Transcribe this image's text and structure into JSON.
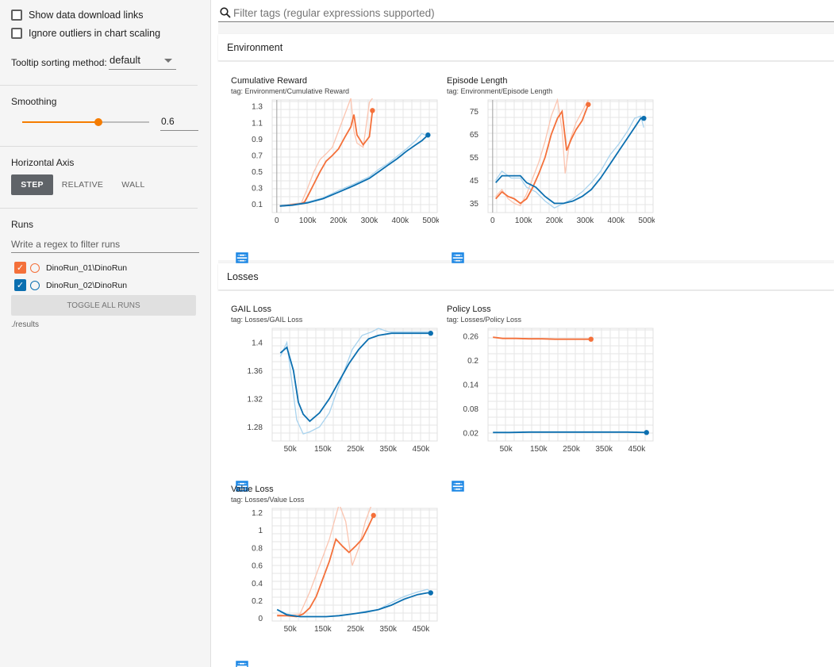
{
  "sidebar": {
    "show_download_links": "Show data download links",
    "ignore_outliers": "Ignore outliers in chart scaling",
    "tooltip_label": "Tooltip sorting method:",
    "tooltip_value": "default",
    "smoothing_label": "Smoothing",
    "smoothing_value": "0.6",
    "smoothing_fraction": 0.6,
    "horizontal_axis_label": "Horizontal Axis",
    "axis_buttons": {
      "step": "STEP",
      "relative": "RELATIVE",
      "wall": "WALL"
    },
    "runs_label": "Runs",
    "runs_filter_placeholder": "Write a regex to filter runs",
    "runs": [
      {
        "name": "DinoRun_01\\DinoRun",
        "color": "#f4703a"
      },
      {
        "name": "DinoRun_02\\DinoRun",
        "color": "#0b6fb0"
      }
    ],
    "toggle_all": "TOGGLE ALL RUNS",
    "logdir": "./results"
  },
  "filter": {
    "placeholder": "Filter tags (regular expressions supported)"
  },
  "sections": [
    {
      "title": "Environment"
    },
    {
      "title": "Losses"
    }
  ],
  "colors": {
    "run1": "#f4703a",
    "run1_raw": "#fbc5b1",
    "run2": "#0b6fb0",
    "run2_raw": "#a9d3ee"
  },
  "charts": [
    {
      "title": "Cumulative Reward",
      "tag": "tag: Environment/Cumulative Reward",
      "chart_data": {
        "type": "line",
        "xticks": [
          "0",
          "100k",
          "200k",
          "300k",
          "400k",
          "500k"
        ],
        "xtick_values": [
          0,
          100000,
          200000,
          300000,
          400000,
          500000
        ],
        "yticks": [
          "0.1",
          "0.3",
          "0.5",
          "0.7",
          "0.9",
          "1.1",
          "1.3"
        ],
        "ytick_values": [
          0.1,
          0.3,
          0.5,
          0.7,
          0.9,
          1.1,
          1.3
        ],
        "xlim": [
          -15000,
          520000
        ],
        "ylim": [
          0.0,
          1.38
        ],
        "series": [
          {
            "run": 0,
            "smoothed": true,
            "x": [
              10000,
              40000,
              60000,
              80000,
              90000,
              100000,
              120000,
              140000,
              160000,
              180000,
              200000,
              220000,
              240000,
              250000,
              260000,
              280000,
              300000,
              310000
            ],
            "y": [
              0.08,
              0.09,
              0.1,
              0.11,
              0.13,
              0.2,
              0.35,
              0.5,
              0.63,
              0.7,
              0.78,
              0.92,
              1.05,
              1.2,
              0.95,
              0.83,
              0.93,
              1.25
            ]
          },
          {
            "run": 0,
            "smoothed": false,
            "x": [
              10000,
              40000,
              80000,
              100000,
              120000,
              140000,
              160000,
              180000,
              200000,
              220000,
              240000,
              250000,
              260000,
              280000,
              300000,
              310000
            ],
            "y": [
              0.08,
              0.1,
              0.12,
              0.3,
              0.5,
              0.65,
              0.72,
              0.8,
              1.0,
              1.2,
              1.4,
              1.0,
              0.85,
              0.8,
              1.35,
              1.4
            ]
          },
          {
            "run": 1,
            "smoothed": true,
            "x": [
              10000,
              50000,
              100000,
              150000,
              200000,
              250000,
              300000,
              330000,
              360000,
              390000,
              420000,
              450000,
              470000,
              490000
            ],
            "y": [
              0.08,
              0.09,
              0.12,
              0.17,
              0.25,
              0.33,
              0.42,
              0.5,
              0.58,
              0.66,
              0.75,
              0.83,
              0.88,
              0.95
            ]
          },
          {
            "run": 1,
            "smoothed": false,
            "x": [
              10000,
              50000,
              100000,
              150000,
              200000,
              250000,
              300000,
              330000,
              360000,
              390000,
              420000,
              450000,
              470000,
              490000
            ],
            "y": [
              0.09,
              0.1,
              0.13,
              0.18,
              0.27,
              0.35,
              0.44,
              0.53,
              0.6,
              0.69,
              0.78,
              0.88,
              0.97,
              0.93
            ]
          }
        ]
      }
    },
    {
      "title": "Episode Length",
      "tag": "tag: Environment/Episode Length",
      "chart_data": {
        "type": "line",
        "xticks": [
          "0",
          "100k",
          "200k",
          "300k",
          "400k",
          "500k"
        ],
        "xtick_values": [
          0,
          100000,
          200000,
          300000,
          400000,
          500000
        ],
        "yticks": [
          "35",
          "45",
          "55",
          "65",
          "75"
        ],
        "ytick_values": [
          35,
          45,
          55,
          65,
          75
        ],
        "xlim": [
          -15000,
          520000
        ],
        "ylim": [
          31,
          80
        ],
        "series": [
          {
            "run": 0,
            "smoothed": true,
            "x": [
              10000,
              30000,
              50000,
              70000,
              90000,
              110000,
              130000,
              150000,
              170000,
              190000,
              210000,
              225000,
              240000,
              255000,
              270000,
              290000,
              310000
            ],
            "y": [
              37,
              40,
              38,
              37,
              35,
              37,
              42,
              48,
              55,
              65,
              72,
              75,
              58,
              63,
              67,
              71,
              78
            ]
          },
          {
            "run": 0,
            "smoothed": false,
            "x": [
              10000,
              30000,
              50000,
              70000,
              90000,
              110000,
              130000,
              150000,
              170000,
              190000,
              210000,
              225000,
              235000,
              250000,
              270000,
              290000,
              310000
            ],
            "y": [
              38,
              41,
              37,
              35,
              34,
              39,
              46,
              53,
              62,
              73,
              80,
              67,
              48,
              62,
              70,
              75,
              80
            ]
          },
          {
            "run": 1,
            "smoothed": true,
            "x": [
              10000,
              30000,
              60000,
              90000,
              110000,
              140000,
              170000,
              200000,
              230000,
              260000,
              290000,
              320000,
              350000,
              380000,
              410000,
              440000,
              460000,
              480000,
              490000
            ],
            "y": [
              44,
              47,
              47,
              47,
              44,
              42,
              38,
              35,
              35,
              36,
              38,
              41,
              46,
              52,
              58,
              64,
              68,
              72,
              72
            ]
          },
          {
            "run": 1,
            "smoothed": false,
            "x": [
              10000,
              30000,
              60000,
              90000,
              110000,
              140000,
              170000,
              200000,
              230000,
              260000,
              290000,
              320000,
              350000,
              380000,
              410000,
              440000,
              460000,
              480000,
              490000
            ],
            "y": [
              45,
              49,
              46,
              46,
              42,
              40,
              36,
              33,
              35,
              37,
              40,
              44,
              49,
              56,
              61,
              67,
              72,
              73,
              68
            ]
          }
        ]
      }
    },
    {
      "title": "GAIL Loss",
      "tag": "tag: Losses/GAIL Loss",
      "chart_data": {
        "type": "line",
        "xticks": [
          "50k",
          "150k",
          "250k",
          "350k",
          "450k"
        ],
        "xtick_values": [
          50000,
          150000,
          250000,
          350000,
          450000
        ],
        "yticks": [
          "1.28",
          "1.32",
          "1.36",
          "1.4"
        ],
        "ytick_values": [
          1.28,
          1.32,
          1.36,
          1.4
        ],
        "xlim": [
          -5000,
          500000
        ],
        "ylim": [
          1.26,
          1.42
        ],
        "series": [
          {
            "run": 1,
            "smoothed": false,
            "x": [
              20000,
              40000,
              70000,
              90000,
              110000,
              140000,
              170000,
              200000,
              240000,
              270000,
              300000,
              320000,
              350000,
              400000,
              450000,
              480000
            ],
            "y": [
              1.38,
              1.4,
              1.29,
              1.27,
              1.273,
              1.28,
              1.3,
              1.34,
              1.39,
              1.41,
              1.415,
              1.42,
              1.415,
              1.415,
              1.415,
              1.415
            ]
          },
          {
            "run": 1,
            "smoothed": true,
            "x": [
              20000,
              40000,
              60000,
              75000,
              90000,
              110000,
              140000,
              170000,
              200000,
              230000,
              260000,
              290000,
              320000,
              360000,
              400000,
              450000,
              480000
            ],
            "y": [
              1.385,
              1.393,
              1.36,
              1.315,
              1.298,
              1.288,
              1.3,
              1.32,
              1.345,
              1.37,
              1.39,
              1.405,
              1.41,
              1.413,
              1.413,
              1.413,
              1.413
            ]
          }
        ]
      }
    },
    {
      "title": "Policy Loss",
      "tag": "tag: Losses/Policy Loss",
      "chart_data": {
        "type": "line",
        "xticks": [
          "50k",
          "150k",
          "250k",
          "350k",
          "450k"
        ],
        "xtick_values": [
          50000,
          150000,
          250000,
          350000,
          450000
        ],
        "yticks": [
          "0.02",
          "0.08",
          "0.14",
          "0.2",
          "0.26"
        ],
        "ytick_values": [
          0.02,
          0.08,
          0.14,
          0.2,
          0.26
        ],
        "xlim": [
          -5000,
          500000
        ],
        "ylim": [
          0.0,
          0.28
        ],
        "series": [
          {
            "run": 0,
            "smoothed": true,
            "x": [
              10000,
              40000,
              80000,
              120000,
              160000,
              200000,
              240000,
              280000,
              310000
            ],
            "y": [
              0.258,
              0.255,
              0.255,
              0.254,
              0.254,
              0.253,
              0.253,
              0.253,
              0.253
            ]
          },
          {
            "run": 1,
            "smoothed": true,
            "x": [
              10000,
              60000,
              120000,
              180000,
              240000,
              300000,
              360000,
              420000,
              480000
            ],
            "y": [
              0.021,
              0.021,
              0.022,
              0.022,
              0.022,
              0.022,
              0.022,
              0.022,
              0.021
            ]
          }
        ]
      }
    },
    {
      "title": "Value Loss",
      "tag": "tag: Losses/Value Loss",
      "chart_data": {
        "type": "line",
        "xticks": [
          "50k",
          "150k",
          "250k",
          "350k",
          "450k"
        ],
        "xtick_values": [
          50000,
          150000,
          250000,
          350000,
          450000
        ],
        "yticks": [
          "0",
          "0.2",
          "0.4",
          "0.6",
          "0.8",
          "1",
          "1.2"
        ],
        "ytick_values": [
          0,
          0.2,
          0.4,
          0.6,
          0.8,
          1.0,
          1.2
        ],
        "xlim": [
          -5000,
          500000
        ],
        "ylim": [
          -0.03,
          1.25
        ],
        "series": [
          {
            "run": 0,
            "smoothed": false,
            "x": [
              10000,
              40000,
              80000,
              110000,
              140000,
              170000,
              200000,
              220000,
              240000,
              260000,
              280000,
              300000,
              310000
            ],
            "y": [
              0.04,
              0.03,
              0.05,
              0.3,
              0.6,
              0.9,
              1.3,
              1.1,
              0.6,
              0.8,
              1.1,
              1.3,
              1.3
            ]
          },
          {
            "run": 0,
            "smoothed": true,
            "x": [
              10000,
              40000,
              70000,
              90000,
              110000,
              130000,
              150000,
              170000,
              190000,
              210000,
              230000,
              250000,
              270000,
              290000,
              305000
            ],
            "y": [
              0.03,
              0.03,
              0.02,
              0.05,
              0.12,
              0.25,
              0.45,
              0.65,
              0.9,
              0.82,
              0.75,
              0.82,
              0.9,
              1.05,
              1.17
            ]
          },
          {
            "run": 1,
            "smoothed": false,
            "x": [
              10000,
              40000,
              80000,
              120000,
              160000,
              200000,
              240000,
              280000,
              320000,
              360000,
              400000,
              440000,
              470000,
              480000
            ],
            "y": [
              0.1,
              0.05,
              0.02,
              0.02,
              0.02,
              0.03,
              0.05,
              0.08,
              0.1,
              0.18,
              0.25,
              0.3,
              0.33,
              0.3
            ]
          },
          {
            "run": 1,
            "smoothed": true,
            "x": [
              10000,
              40000,
              80000,
              120000,
              160000,
              200000,
              240000,
              280000,
              320000,
              360000,
              400000,
              440000,
              470000,
              480000
            ],
            "y": [
              0.1,
              0.04,
              0.02,
              0.02,
              0.02,
              0.03,
              0.05,
              0.07,
              0.1,
              0.15,
              0.22,
              0.27,
              0.29,
              0.29
            ]
          }
        ]
      }
    }
  ]
}
